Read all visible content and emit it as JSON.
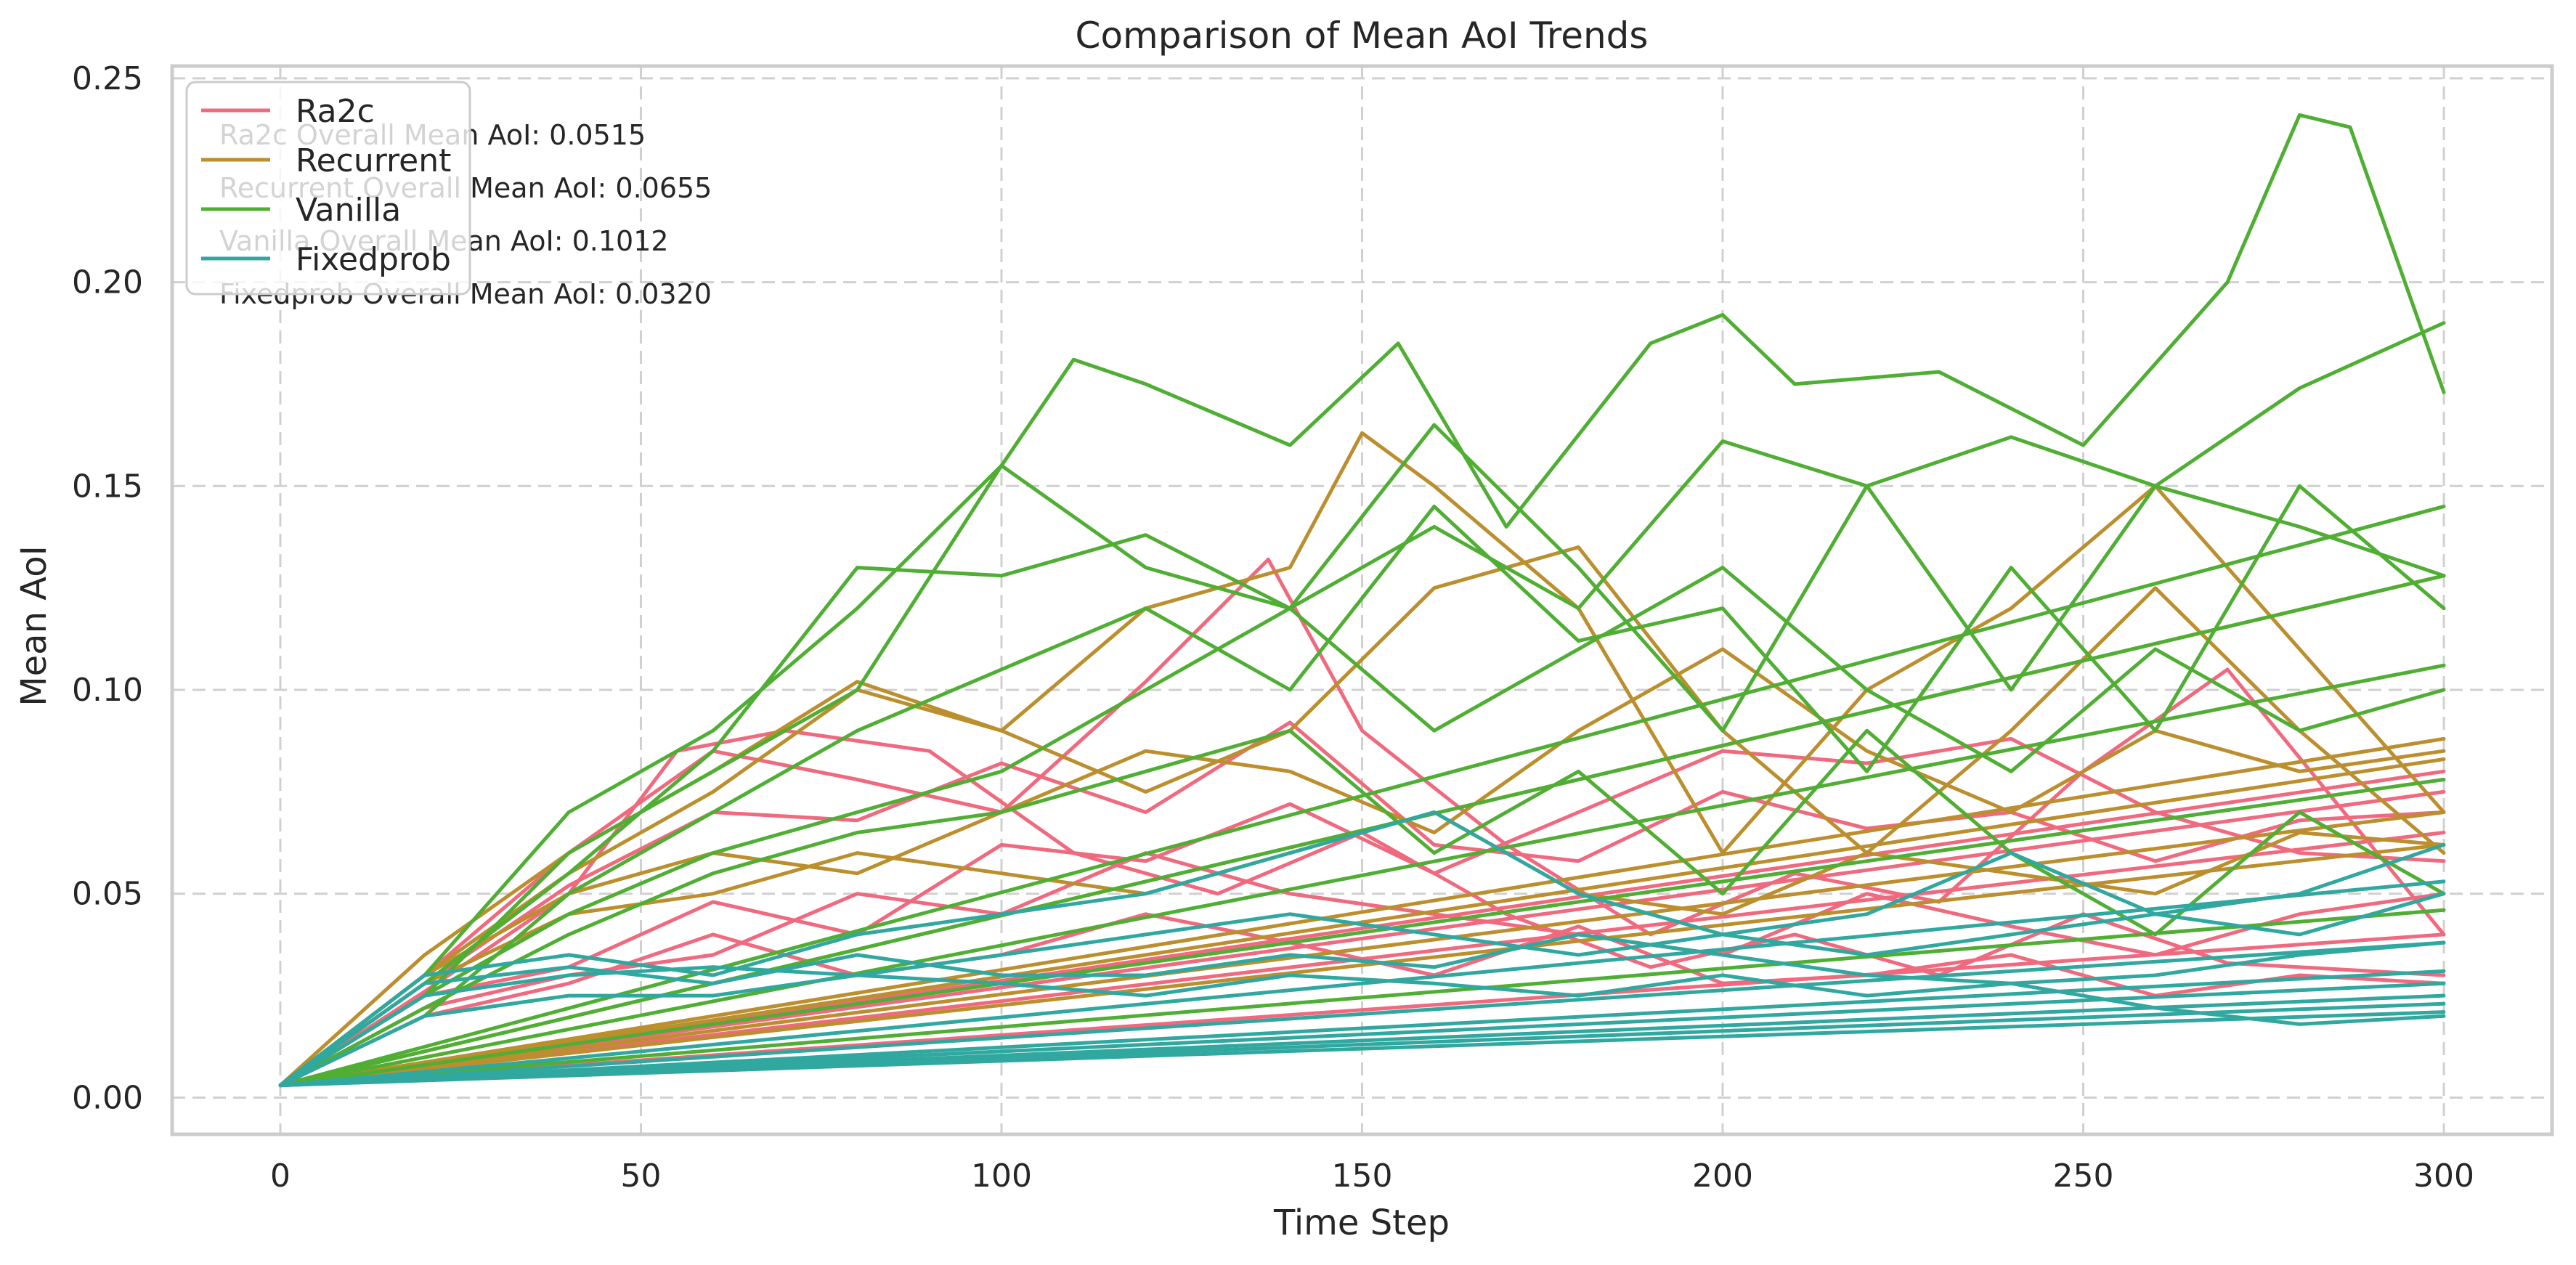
{
  "chart_data": {
    "type": "line",
    "title": "Comparison of Mean AoI Trends",
    "xlabel": "Time Step",
    "ylabel": "Mean AoI",
    "xlim": [
      -15,
      315
    ],
    "ylim": [
      -0.009,
      0.253
    ],
    "xticks": [
      0,
      50,
      100,
      150,
      200,
      250,
      300
    ],
    "yticks": [
      0.0,
      0.05,
      0.1,
      0.15,
      0.2,
      0.25
    ],
    "xtick_labels": [
      "0",
      "50",
      "100",
      "150",
      "200",
      "250",
      "300"
    ],
    "ytick_labels": [
      "0.00",
      "0.05",
      "0.10",
      "0.15",
      "0.20",
      "0.25"
    ],
    "grid": true,
    "legend_position": "top-left",
    "series": [
      {
        "name": "Ra2c",
        "color": "#f0697e",
        "overall_mean_aoi": 0.0515,
        "annotation": "Ra2c Overall Mean AoI: 0.0515",
        "runs": [
          {
            "x": [
              0,
              20,
              40,
              60,
              80,
              100,
              120,
              140,
              160,
              180,
              200,
              220,
              240,
              260,
              280,
              300
            ],
            "y": [
              0.003,
              0.028,
              0.052,
              0.07,
              0.068,
              0.082,
              0.07,
              0.092,
              0.062,
              0.058,
              0.075,
              0.066,
              0.07,
              0.058,
              0.068,
              0.07
            ]
          },
          {
            "x": [
              0,
              20,
              40,
              60,
              80,
              100,
              120,
              137,
              150,
              170,
              190,
              210,
              230,
              250,
              270,
              300
            ],
            "y": [
              0.003,
              0.03,
              0.06,
              0.085,
              0.078,
              0.07,
              0.102,
              0.132,
              0.09,
              0.062,
              0.04,
              0.055,
              0.048,
              0.08,
              0.105,
              0.04
            ]
          },
          {
            "x": [
              0,
              20,
              40,
              55,
              70,
              90,
              110,
              130,
              150,
              170,
              190,
              210,
              230,
              250,
              270,
              300
            ],
            "y": [
              0.003,
              0.026,
              0.05,
              0.085,
              0.09,
              0.085,
              0.06,
              0.05,
              0.065,
              0.045,
              0.032,
              0.04,
              0.03,
              0.045,
              0.033,
              0.03
            ]
          },
          {
            "x": [
              0,
              20,
              40,
              60,
              80,
              100,
              120,
              140,
              160,
              180,
              200,
              220,
              240,
              260,
              280,
              300
            ],
            "y": [
              0.003,
              0.025,
              0.032,
              0.048,
              0.04,
              0.062,
              0.058,
              0.072,
              0.055,
              0.07,
              0.085,
              0.082,
              0.088,
              0.07,
              0.06,
              0.058
            ]
          },
          {
            "x": [
              0,
              20,
              40,
              60,
              80,
              100,
              120,
              140,
              160,
              180,
              200,
              220,
              240,
              260,
              280,
              300
            ],
            "y": [
              0.003,
              0.022,
              0.03,
              0.035,
              0.05,
              0.045,
              0.06,
              0.05,
              0.045,
              0.04,
              0.035,
              0.05,
              0.042,
              0.035,
              0.045,
              0.05
            ]
          },
          {
            "x": [
              0,
              20,
              40,
              60,
              80,
              100,
              120,
              140,
              160,
              180,
              200,
              220,
              240,
              260,
              280,
              300
            ],
            "y": [
              0.003,
              0.02,
              0.028,
              0.04,
              0.03,
              0.035,
              0.045,
              0.038,
              0.03,
              0.042,
              0.028,
              0.03,
              0.035,
              0.025,
              0.03,
              0.028
            ]
          },
          {
            "x": [
              0,
              300
            ],
            "y": [
              0.003,
              0.08
            ]
          },
          {
            "x": [
              0,
              300
            ],
            "y": [
              0.003,
              0.075
            ]
          },
          {
            "x": [
              0,
              300
            ],
            "y": [
              0.003,
              0.065
            ]
          },
          {
            "x": [
              0,
              300
            ],
            "y": [
              0.003,
              0.04
            ]
          }
        ]
      },
      {
        "name": "Recurrent",
        "color": "#bb8f2e",
        "overall_mean_aoi": 0.0655,
        "annotation": "Recurrent Overall Mean AoI: 0.0655",
        "runs": [
          {
            "x": [
              0,
              20,
              40,
              60,
              80,
              100,
              120,
              140,
              150,
              160,
              180,
              200,
              220,
              240,
              260,
              280,
              300
            ],
            "y": [
              0.003,
              0.03,
              0.055,
              0.075,
              0.1,
              0.09,
              0.12,
              0.13,
              0.163,
              0.15,
              0.12,
              0.06,
              0.1,
              0.12,
              0.15,
              0.11,
              0.07
            ]
          },
          {
            "x": [
              0,
              20,
              40,
              60,
              80,
              100,
              120,
              140,
              160,
              180,
              200,
              220,
              240,
              260,
              280,
              300
            ],
            "y": [
              0.003,
              0.035,
              0.06,
              0.08,
              0.102,
              0.09,
              0.075,
              0.09,
              0.125,
              0.135,
              0.09,
              0.06,
              0.09,
              0.125,
              0.09,
              0.06
            ]
          },
          {
            "x": [
              0,
              20,
              40,
              60,
              80,
              100,
              120,
              140,
              160,
              180,
              200,
              220,
              240,
              260,
              280,
              300
            ],
            "y": [
              0.003,
              0.03,
              0.05,
              0.06,
              0.055,
              0.07,
              0.085,
              0.08,
              0.065,
              0.09,
              0.11,
              0.085,
              0.07,
              0.09,
              0.08,
              0.085
            ]
          },
          {
            "x": [
              0,
              20,
              40,
              60,
              80,
              100,
              120,
              140,
              160,
              180,
              200,
              220,
              240,
              260,
              280,
              300
            ],
            "y": [
              0.003,
              0.028,
              0.045,
              0.05,
              0.06,
              0.055,
              0.05,
              0.06,
              0.07,
              0.05,
              0.045,
              0.06,
              0.055,
              0.05,
              0.065,
              0.062
            ]
          },
          {
            "x": [
              0,
              300
            ],
            "y": [
              0.003,
              0.128
            ]
          },
          {
            "x": [
              0,
              300
            ],
            "y": [
              0.003,
              0.088
            ]
          },
          {
            "x": [
              0,
              300
            ],
            "y": [
              0.003,
              0.083
            ]
          },
          {
            "x": [
              0,
              300
            ],
            "y": [
              0.003,
              0.07
            ]
          },
          {
            "x": [
              0,
              300
            ],
            "y": [
              0.003,
              0.062
            ]
          }
        ]
      },
      {
        "name": "Vanilla",
        "color": "#4fae33",
        "overall_mean_aoi": 0.1012,
        "annotation": "Vanilla Overall Mean AoI: 0.1012",
        "runs": [
          {
            "x": [
              0,
              20,
              40,
              60,
              80,
              100,
              110,
              120,
              140,
              155,
              170,
              190,
              200,
              210,
              230,
              250,
              270,
              280,
              287,
              300
            ],
            "y": [
              0.003,
              0.03,
              0.07,
              0.09,
              0.12,
              0.155,
              0.181,
              0.175,
              0.16,
              0.185,
              0.14,
              0.185,
              0.192,
              0.175,
              0.178,
              0.16,
              0.2,
              0.241,
              0.238,
              0.173
            ]
          },
          {
            "x": [
              0,
              20,
              40,
              60,
              80,
              100,
              120,
              140,
              160,
              180,
              200,
              220,
              240,
              260,
              280,
              300
            ],
            "y": [
              0.003,
              0.025,
              0.06,
              0.08,
              0.1,
              0.155,
              0.13,
              0.12,
              0.14,
              0.12,
              0.161,
              0.15,
              0.162,
              0.15,
              0.174,
              0.19
            ]
          },
          {
            "x": [
              0,
              20,
              40,
              60,
              80,
              100,
              120,
              140,
              160,
              180,
              200,
              220,
              240,
              260,
              280,
              300
            ],
            "y": [
              0.003,
              0.028,
              0.055,
              0.085,
              0.13,
              0.128,
              0.138,
              0.12,
              0.165,
              0.13,
              0.09,
              0.15,
              0.1,
              0.15,
              0.14,
              0.128
            ]
          },
          {
            "x": [
              0,
              20,
              40,
              60,
              80,
              100,
              120,
              140,
              160,
              180,
              200,
              220,
              240,
              260,
              280,
              300
            ],
            "y": [
              0.003,
              0.02,
              0.05,
              0.07,
              0.09,
              0.105,
              0.12,
              0.1,
              0.145,
              0.112,
              0.12,
              0.08,
              0.13,
              0.09,
              0.15,
              0.12
            ]
          },
          {
            "x": [
              0,
              20,
              40,
              60,
              80,
              100,
              120,
              140,
              160,
              180,
              200,
              220,
              240,
              260,
              280,
              300
            ],
            "y": [
              0.003,
              0.025,
              0.045,
              0.06,
              0.07,
              0.08,
              0.1,
              0.12,
              0.09,
              0.11,
              0.13,
              0.1,
              0.08,
              0.11,
              0.09,
              0.1
            ]
          },
          {
            "x": [
              0,
              20,
              40,
              60,
              80,
              100,
              120,
              140,
              160,
              180,
              200,
              220,
              240,
              260,
              280,
              300
            ],
            "y": [
              0.003,
              0.022,
              0.04,
              0.055,
              0.065,
              0.07,
              0.08,
              0.09,
              0.06,
              0.08,
              0.05,
              0.09,
              0.06,
              0.04,
              0.07,
              0.05
            ]
          },
          {
            "x": [
              0,
              300
            ],
            "y": [
              0.003,
              0.145
            ]
          },
          {
            "x": [
              0,
              300
            ],
            "y": [
              0.003,
              0.128
            ]
          },
          {
            "x": [
              0,
              300
            ],
            "y": [
              0.003,
              0.106
            ]
          },
          {
            "x": [
              0,
              300
            ],
            "y": [
              0.003,
              0.078
            ]
          },
          {
            "x": [
              0,
              300
            ],
            "y": [
              0.003,
              0.046
            ]
          }
        ]
      },
      {
        "name": "Fixedprob",
        "color": "#30a8a0",
        "overall_mean_aoi": 0.032,
        "annotation": "Fixedprob Overall Mean AoI: 0.0320",
        "runs": [
          {
            "x": [
              0,
              20,
              40,
              60,
              80,
              100,
              120,
              140,
              160,
              180,
              200,
              220,
              240,
              260,
              280,
              300
            ],
            "y": [
              0.003,
              0.03,
              0.035,
              0.03,
              0.04,
              0.045,
              0.05,
              0.06,
              0.07,
              0.05,
              0.04,
              0.045,
              0.06,
              0.045,
              0.04,
              0.05
            ]
          },
          {
            "x": [
              0,
              20,
              40,
              60,
              80,
              100,
              120,
              140,
              160,
              180,
              200,
              220,
              240,
              260,
              280,
              300
            ],
            "y": [
              0.003,
              0.025,
              0.03,
              0.032,
              0.03,
              0.035,
              0.04,
              0.045,
              0.04,
              0.035,
              0.04,
              0.035,
              0.04,
              0.045,
              0.05,
              0.062
            ]
          },
          {
            "x": [
              0,
              20,
              40,
              60,
              80,
              100,
              120,
              140,
              160,
              180,
              200,
              220,
              240,
              260,
              280,
              300
            ],
            "y": [
              0.003,
              0.028,
              0.032,
              0.028,
              0.035,
              0.03,
              0.03,
              0.035,
              0.032,
              0.04,
              0.035,
              0.03,
              0.028,
              0.03,
              0.035,
              0.038
            ]
          },
          {
            "x": [
              0,
              20,
              40,
              60,
              80,
              100,
              120,
              140,
              160,
              180,
              200,
              220,
              240,
              260,
              280,
              300
            ],
            "y": [
              0.003,
              0.02,
              0.025,
              0.025,
              0.03,
              0.028,
              0.025,
              0.03,
              0.028,
              0.025,
              0.03,
              0.025,
              0.028,
              0.022,
              0.018,
              0.02
            ]
          },
          {
            "x": [
              0,
              300
            ],
            "y": [
              0.003,
              0.053
            ]
          },
          {
            "x": [
              0,
              300
            ],
            "y": [
              0.003,
              0.038
            ]
          },
          {
            "x": [
              0,
              300
            ],
            "y": [
              0.003,
              0.031
            ]
          },
          {
            "x": [
              0,
              300
            ],
            "y": [
              0.003,
              0.028
            ]
          },
          {
            "x": [
              0,
              300
            ],
            "y": [
              0.003,
              0.025
            ]
          },
          {
            "x": [
              0,
              300
            ],
            "y": [
              0.003,
              0.023
            ]
          },
          {
            "x": [
              0,
              300
            ],
            "y": [
              0.003,
              0.021
            ]
          }
        ]
      }
    ]
  }
}
